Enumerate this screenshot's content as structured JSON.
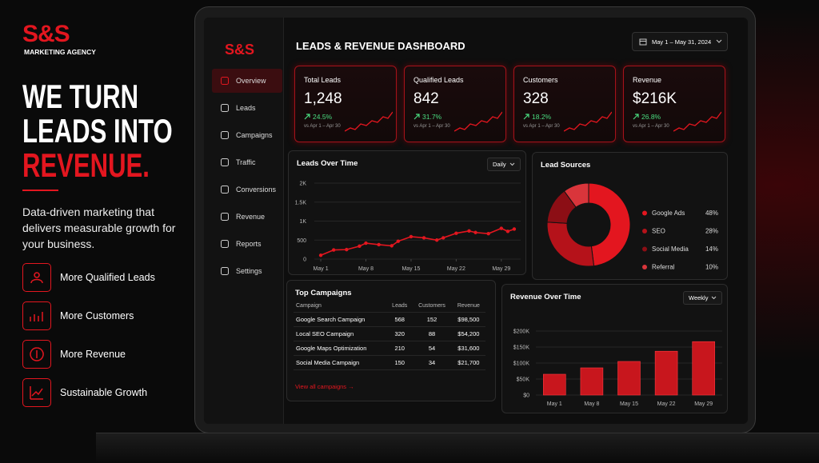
{
  "promo": {
    "brand": "S&S",
    "tagline": "MARKETING AGENCY",
    "headline": [
      "WE TURN",
      "LEADS INTO",
      "REVENUE."
    ],
    "description": "Data-driven marketing that delivers measurable growth for your business.",
    "features": [
      "More Qualified Leads",
      "More Customers",
      "More Revenue",
      "Sustainable Growth"
    ]
  },
  "dashboard": {
    "logo": "S&S",
    "nav": [
      "Overview",
      "Leads",
      "Campaigns",
      "Traffic",
      "Conversions",
      "Revenue",
      "Reports",
      "Settings"
    ],
    "title": "LEADS & REVENUE DASHBOARD",
    "date_range": "May 1 – May 31, 2024",
    "kpis": [
      {
        "label": "Total Leads",
        "value": "1,248",
        "change": "24.5%",
        "period": "vs Apr 1 – Apr 30"
      },
      {
        "label": "Qualified Leads",
        "value": "842",
        "change": "31.7%",
        "period": "vs Apr 1 – Apr 30"
      },
      {
        "label": "Customers",
        "value": "328",
        "change": "18.2%",
        "period": "vs Apr 1 – Apr 30"
      },
      {
        "label": "Revenue",
        "value": "$216K",
        "change": "26.8%",
        "period": "vs Apr 1 – Apr 30"
      }
    ],
    "campaigns": {
      "title": "Top Campaigns",
      "columns": [
        "Campaign",
        "Leads",
        "Customers",
        "Revenue"
      ],
      "rows": [
        [
          "Google Search Campaign",
          "568",
          "152",
          "$98,500"
        ],
        [
          "Local SEO Campaign",
          "320",
          "88",
          "$54,200"
        ],
        [
          "Google Maps Optimization",
          "210",
          "54",
          "$31,600"
        ],
        [
          "Social Media Campaign",
          "150",
          "34",
          "$21,700"
        ]
      ],
      "link": "View all campaigns →"
    }
  },
  "chart_data": [
    {
      "type": "line",
      "title": "Leads Over Time",
      "control": "Daily",
      "color": "#e3161f",
      "x": [
        1,
        3,
        5,
        7,
        8,
        10,
        12,
        13,
        15,
        17,
        19,
        20,
        22,
        24,
        25,
        27,
        29,
        30,
        31
      ],
      "values": [
        100,
        240,
        250,
        340,
        420,
        380,
        350,
        470,
        590,
        560,
        500,
        560,
        680,
        740,
        700,
        670,
        810,
        730,
        790
      ],
      "xlim": [
        0,
        32
      ],
      "ylim": [
        0,
        2000
      ],
      "xticks": [
        {
          "value": 1,
          "label": "May 1"
        },
        {
          "value": 8,
          "label": "May 8"
        },
        {
          "value": 15,
          "label": "May 15"
        },
        {
          "value": 22,
          "label": "May 22"
        },
        {
          "value": 29,
          "label": "May 29"
        }
      ],
      "yticks": [
        0,
        500,
        {
          "value": 1000,
          "label": "1K"
        },
        {
          "value": 1500,
          "label": "1.5K"
        },
        {
          "value": 2000,
          "label": "2K"
        }
      ],
      "grid": true
    },
    {
      "type": "pie",
      "title": "Lead Sources",
      "donut": true,
      "categories": [
        "Google Ads",
        "SEO",
        "Social Media",
        "Referral"
      ],
      "values": [
        48,
        28,
        14,
        10
      ],
      "value_labels": [
        "48%",
        "28%",
        "14%",
        "10%"
      ],
      "colors": [
        "#e3161f",
        "#b5121a",
        "#8c0e15",
        "#d9353b"
      ]
    },
    {
      "type": "bar",
      "title": "Revenue Over Time",
      "control": "Weekly",
      "color": "#c8161d",
      "categories": [
        "May 1",
        "May 8",
        "May 15",
        "May 22",
        "May 29"
      ],
      "values": [
        65000,
        85000,
        105000,
        137000,
        167000
      ],
      "ylim": [
        0,
        200000
      ],
      "yticks": [
        {
          "value": 0,
          "label": "$0"
        },
        {
          "value": 50000,
          "label": "$50K"
        },
        {
          "value": 100000,
          "label": "$100K"
        },
        {
          "value": 150000,
          "label": "$150K"
        },
        {
          "value": 200000,
          "label": "$200K"
        }
      ],
      "grid": true
    }
  ]
}
